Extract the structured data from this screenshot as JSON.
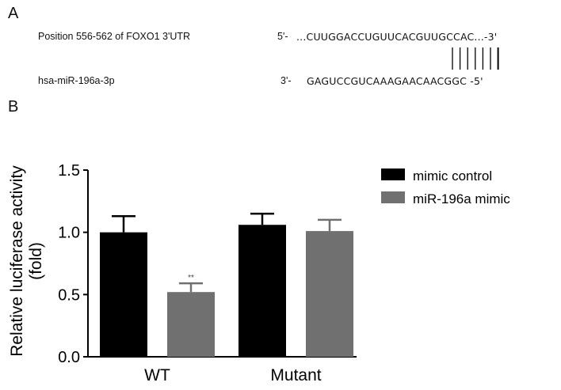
{
  "panel_a": {
    "label": "A",
    "target_name": "Position 556-562 of FOXO1 3'UTR",
    "target_prefix": "5'-",
    "target_sequence": "...CUUGGACCUGUUCACGUUGCCAC...-3'",
    "mirna_name": "hsa-miR-196a-3p",
    "mirna_prefix": "3'-",
    "mirna_sequence": "GAGUCCGUCAAAGAACAACGGC -5'",
    "pair_lines": 7
  },
  "panel_b": {
    "label": "B"
  },
  "chart_data": {
    "type": "bar",
    "categories": [
      "WT",
      "Mutant"
    ],
    "series": [
      {
        "name": "mimic control",
        "color": "#000000",
        "values": [
          1.0,
          1.06
        ],
        "errors": [
          0.13,
          0.09
        ]
      },
      {
        "name": "miR-196a mimic",
        "color": "#707070",
        "values": [
          0.52,
          1.01
        ],
        "errors": [
          0.07,
          0.09
        ]
      }
    ],
    "annotations": [
      {
        "category": "WT",
        "series": "miR-196a mimic",
        "text": "**"
      }
    ],
    "ylabel_line1": "Relative luciferase activity",
    "ylabel_line2": "(fold)",
    "ylim": [
      0,
      1.5
    ],
    "yticks": [
      "0.0",
      "0.5",
      "1.0",
      "1.5"
    ],
    "ytick_values": [
      0,
      0.5,
      1.0,
      1.5
    ],
    "grid": false,
    "legend_position": "top-right"
  }
}
